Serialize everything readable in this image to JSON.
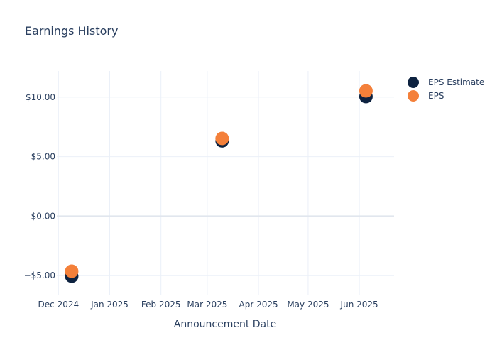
{
  "chart_data": {
    "type": "scatter",
    "title": "Earnings History",
    "xlabel": "Announcement Date",
    "ylabel": "",
    "ylim": [
      -6.6,
      12.2
    ],
    "y_ticks": [
      -5,
      0,
      5,
      10
    ],
    "y_tick_labels": [
      "−$5.00",
      "$0.00",
      "$5.00",
      "$10.00"
    ],
    "x_ticks": [
      "2024-12-01",
      "2025-01-01",
      "2025-02-01",
      "2025-03-01",
      "2025-04-01",
      "2025-05-01",
      "2025-06-01"
    ],
    "x_tick_labels": [
      "Dec 2024",
      "Jan 2025",
      "Feb 2025",
      "Mar 2025",
      "Apr 2025",
      "May 2025",
      "Jun 2025"
    ],
    "xlim": [
      "2024-11-30",
      "2025-06-22"
    ],
    "grid": true,
    "legend_position": "top-right",
    "series": [
      {
        "name": "EPS Estimate",
        "color": "#0d2240",
        "points": [
          {
            "x": "2024-12-09",
            "y": -5.05
          },
          {
            "x": "2025-03-10",
            "y": 6.33
          },
          {
            "x": "2025-06-05",
            "y": 10.05
          }
        ]
      },
      {
        "name": "EPS",
        "color": "#f4803a",
        "points": [
          {
            "x": "2024-12-09",
            "y": -4.63
          },
          {
            "x": "2025-03-10",
            "y": 6.53
          },
          {
            "x": "2025-06-05",
            "y": 10.53
          }
        ]
      }
    ]
  }
}
